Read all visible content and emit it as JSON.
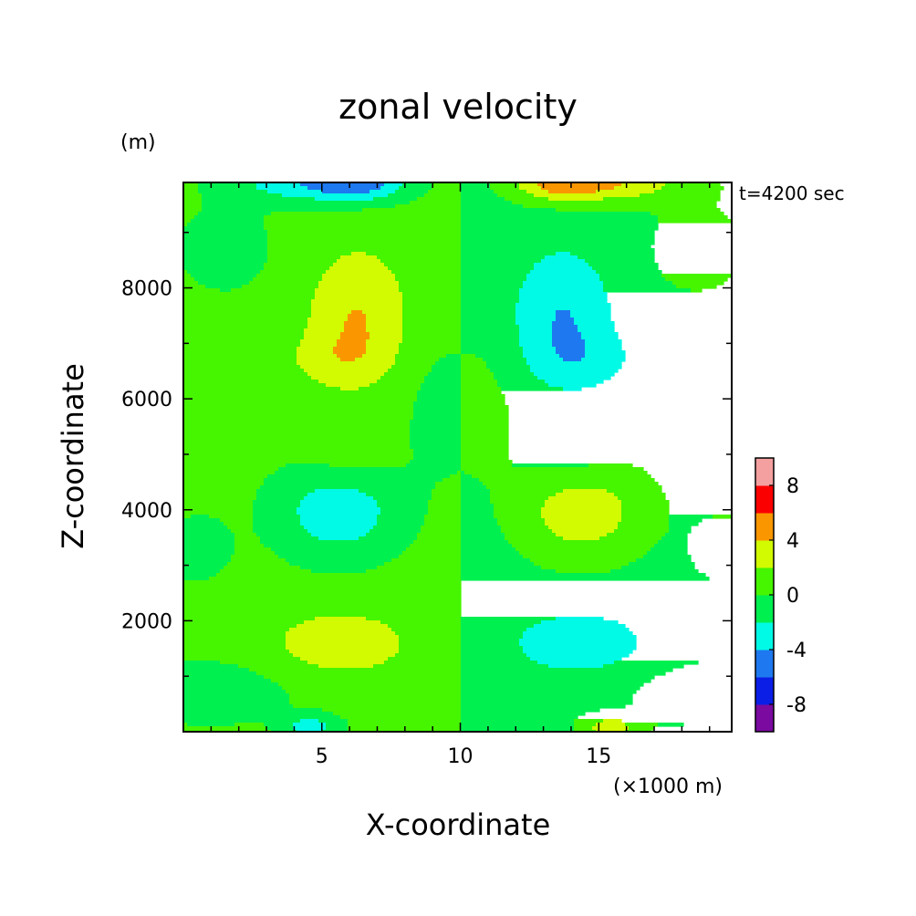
{
  "chart_data": {
    "type": "heatmap",
    "title": "zonal velocity",
    "xlabel": "X-coordinate",
    "ylabel": "Z-coordinate",
    "x_unit_label": "(×1000 m)",
    "y_unit_label": "(m)",
    "time_label": "t=4200 sec",
    "xlim": [
      0,
      19.8
    ],
    "ylim": [
      0,
      9900
    ],
    "x_ticks": [
      5,
      10,
      15
    ],
    "y_ticks": [
      2000,
      4000,
      6000,
      8000
    ],
    "colorbar": {
      "levels": [
        -10,
        -8,
        -6,
        -4,
        -2,
        0,
        2,
        4,
        6,
        8,
        10
      ],
      "colors": [
        "#7a0aa0",
        "#0a1ee6",
        "#1e78f0",
        "#00fae6",
        "#00f050",
        "#46f500",
        "#d2fa00",
        "#fa9600",
        "#fa0000",
        "#f5a0a0"
      ],
      "tick_labels": [
        "-8",
        "-4",
        "0",
        "4",
        "8"
      ],
      "tick_values": [
        -8,
        -4,
        0,
        4,
        8
      ]
    },
    "field_features": [
      {
        "x": 6.5,
        "z": 7300,
        "value": 2.7,
        "description": "positive core upper-left"
      },
      {
        "x": 13.5,
        "z": 7300,
        "value": -2.7,
        "description": "negative core upper-right"
      },
      {
        "x": 5.8,
        "z": 4000,
        "value": -2.7,
        "description": "negative core middle-left"
      },
      {
        "x": 14.2,
        "z": 4000,
        "value": 2.7,
        "description": "positive core middle-right"
      },
      {
        "x": 5.8,
        "z": 1600,
        "value": 2.5,
        "description": "positive band lower-left"
      },
      {
        "x": 14.2,
        "z": 1600,
        "value": -2.5,
        "description": "negative band lower-right"
      },
      {
        "x": 6.5,
        "z": 9850,
        "value": -5,
        "description": "negative top edge left"
      },
      {
        "x": 14.0,
        "z": 9850,
        "value": 5,
        "description": "positive top edge right"
      },
      {
        "x": 4.9,
        "z": 100,
        "value": -2.5,
        "description": "negative bottom edge left"
      },
      {
        "x": 15.1,
        "z": 100,
        "value": 2.5,
        "description": "positive bottom edge right"
      }
    ]
  }
}
